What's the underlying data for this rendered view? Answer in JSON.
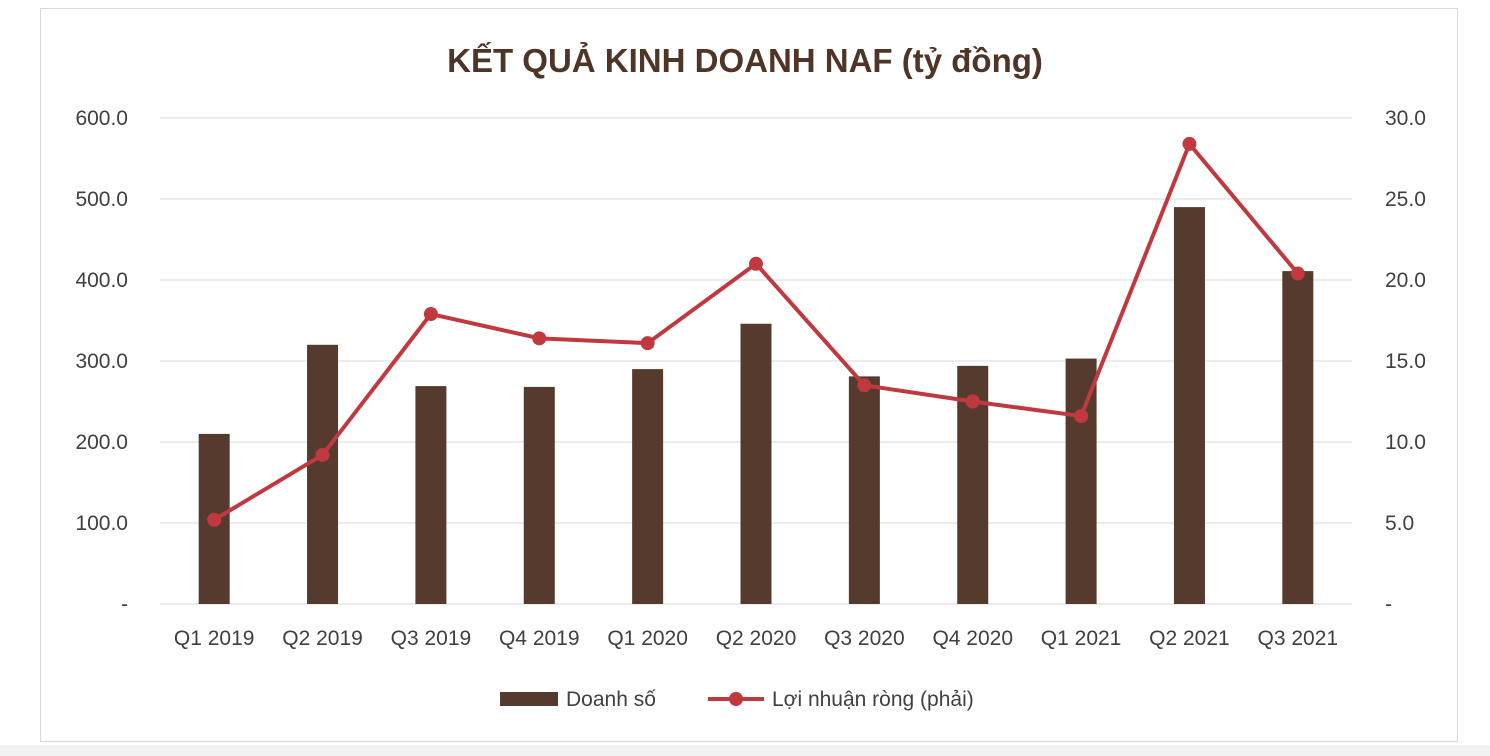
{
  "chart_data": {
    "type": "bar",
    "title": "KẾT QUẢ KINH DOANH NAF (tỷ đồng)",
    "categories": [
      "Q1 2019",
      "Q2 2019",
      "Q3 2019",
      "Q4 2019",
      "Q1 2020",
      "Q2 2020",
      "Q3 2020",
      "Q4 2020",
      "Q1 2021",
      "Q2 2021",
      "Q3 2021"
    ],
    "series": [
      {
        "name": "Doanh số",
        "type": "bar",
        "axis": "left",
        "color": "#553a2d",
        "values": [
          210,
          320,
          269,
          268,
          290,
          346,
          281,
          294,
          303,
          490,
          411
        ]
      },
      {
        "name": "Lợi nhuận ròng (phải)",
        "type": "line",
        "axis": "right",
        "color": "#c0393f",
        "values": [
          5.2,
          9.2,
          17.9,
          16.4,
          16.1,
          21.0,
          13.5,
          12.5,
          11.6,
          28.4,
          20.4
        ]
      }
    ],
    "left_axis": {
      "min": 0,
      "max": 600,
      "ticks": [
        "-",
        "100.0",
        "200.0",
        "300.0",
        "400.0",
        "500.0",
        "600.0"
      ]
    },
    "right_axis": {
      "min": 0,
      "max": 30,
      "ticks": [
        "-",
        "5.0",
        "10.0",
        "15.0",
        "20.0",
        "25.0",
        "30.0"
      ]
    },
    "grid": true,
    "legend": "bottom"
  }
}
